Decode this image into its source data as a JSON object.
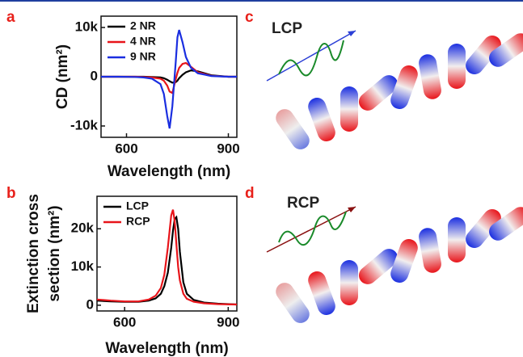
{
  "panel_labels": [
    "a",
    "b",
    "c",
    "d"
  ],
  "illustrations": [
    {
      "label": "LCP"
    },
    {
      "label": "RCP"
    }
  ],
  "chart_data": [
    {
      "type": "line",
      "xlabel": "Wavelength (nm)",
      "ylabel": [
        "CD (nm²)"
      ],
      "xlim": [
        525,
        925
      ],
      "xticks": [
        600,
        900
      ],
      "ylim": [
        -12300,
        12300
      ],
      "yticks": [
        {
          "value": 10000,
          "label": "10k"
        },
        0,
        {
          "value": -10000,
          "label": "-10k"
        }
      ],
      "legend": "upper left",
      "x": [
        525,
        575,
        625,
        650,
        675,
        700,
        710,
        720,
        727,
        735,
        745,
        750,
        755,
        765,
        775,
        790,
        810,
        850,
        900,
        925
      ],
      "series": [
        {
          "name": "2 NR",
          "color": "#000000",
          "values": [
            0,
            0,
            0,
            0,
            -50,
            -150,
            -300,
            -600,
            -900,
            -1200,
            -1100,
            -800,
            -300,
            400,
            900,
            1300,
            1100,
            300,
            0,
            0
          ]
        },
        {
          "name": "4 NR",
          "color": "#e8141a",
          "values": [
            0,
            0,
            0,
            -50,
            -150,
            -400,
            -800,
            -1800,
            -3000,
            -3300,
            -500,
            800,
            1800,
            2600,
            2800,
            2000,
            900,
            200,
            0,
            0
          ]
        },
        {
          "name": "9 NR",
          "color": "#1a2ee0",
          "values": [
            0,
            0,
            -50,
            -150,
            -400,
            -1500,
            -3500,
            -8000,
            -10500,
            -6000,
            3000,
            8000,
            9500,
            7000,
            4000,
            1800,
            700,
            150,
            0,
            0
          ]
        }
      ]
    },
    {
      "type": "line",
      "xlabel": "Wavelength (nm)",
      "ylabel": [
        "Extinction cross",
        "section (nm²)"
      ],
      "xlim": [
        520,
        925
      ],
      "xticks": [
        600,
        900
      ],
      "ylim": [
        -1500,
        28500
      ],
      "yticks": [
        {
          "value": 20000,
          "label": "20k"
        },
        {
          "value": 10000,
          "label": "10k"
        },
        0
      ],
      "legend": "upper left",
      "x": [
        520,
        560,
        600,
        640,
        670,
        690,
        705,
        715,
        725,
        735,
        740,
        745,
        750,
        755,
        760,
        770,
        780,
        800,
        830,
        870,
        925
      ],
      "series": [
        {
          "name": "LCP",
          "color": "#000000",
          "values": [
            1200,
            1000,
            900,
            900,
            1200,
            1800,
            3000,
            5000,
            8500,
            15000,
            19500,
            22500,
            23000,
            20000,
            14000,
            6000,
            3000,
            1400,
            700,
            400,
            200
          ]
        },
        {
          "name": "RCP",
          "color": "#e8141a",
          "values": [
            1500,
            1200,
            1000,
            1000,
            1500,
            2500,
            4500,
            8000,
            15000,
            23500,
            25000,
            22000,
            16000,
            10000,
            6500,
            3000,
            1700,
            900,
            500,
            300,
            200
          ]
        }
      ]
    }
  ]
}
